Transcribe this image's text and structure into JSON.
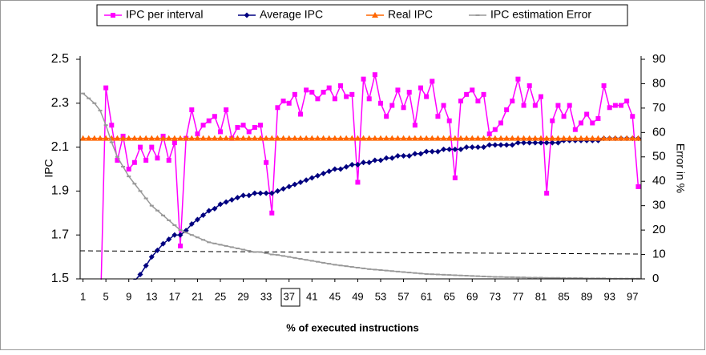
{
  "chart_data": {
    "type": "line",
    "x": [
      1,
      2,
      3,
      4,
      5,
      6,
      7,
      8,
      9,
      10,
      11,
      12,
      13,
      14,
      15,
      16,
      17,
      18,
      19,
      20,
      21,
      22,
      23,
      24,
      25,
      26,
      27,
      28,
      29,
      30,
      31,
      32,
      33,
      34,
      35,
      36,
      37,
      38,
      39,
      40,
      41,
      42,
      43,
      44,
      45,
      46,
      47,
      48,
      49,
      50,
      51,
      52,
      53,
      54,
      55,
      56,
      57,
      58,
      59,
      60,
      61,
      62,
      63,
      64,
      65,
      66,
      67,
      68,
      69,
      70,
      71,
      72,
      73,
      74,
      75,
      76,
      77,
      78,
      79,
      80,
      81,
      82,
      83,
      84,
      85,
      86,
      87,
      88,
      89,
      90,
      91,
      92,
      93,
      94,
      95,
      96,
      97,
      98
    ],
    "xlim": [
      0.5,
      98.5
    ],
    "xticks": [
      1,
      5,
      9,
      13,
      17,
      21,
      25,
      29,
      33,
      37,
      41,
      45,
      49,
      53,
      57,
      61,
      65,
      69,
      73,
      77,
      81,
      85,
      89,
      93,
      97
    ],
    "ylim": [
      1.5,
      2.5
    ],
    "yticks": [
      1.5,
      1.7,
      1.9,
      2.1,
      2.3,
      2.5
    ],
    "y2lim": [
      0,
      90
    ],
    "y2ticks": [
      0,
      10,
      20,
      30,
      40,
      50,
      60,
      70,
      80,
      90
    ],
    "xlabel": "% of executed instructions",
    "ylabel": "IPC",
    "y2label": "Error in %",
    "series": [
      {
        "name": "IPC per interval",
        "color": "#ff00ff",
        "marker": "square",
        "values": [
          null,
          null,
          null,
          1.3,
          2.37,
          2.2,
          2.04,
          2.15,
          2.0,
          2.03,
          2.1,
          2.04,
          2.1,
          2.05,
          2.15,
          2.04,
          2.12,
          1.65,
          2.14,
          2.27,
          2.16,
          2.2,
          2.22,
          2.24,
          2.17,
          2.27,
          2.14,
          2.19,
          2.2,
          2.17,
          2.19,
          2.2,
          2.03,
          1.8,
          2.28,
          2.31,
          2.3,
          2.34,
          2.25,
          2.36,
          2.35,
          2.32,
          2.35,
          2.37,
          2.32,
          2.38,
          2.33,
          2.34,
          1.94,
          2.41,
          2.32,
          2.43,
          2.3,
          2.24,
          2.29,
          2.36,
          2.28,
          2.35,
          2.2,
          2.37,
          2.33,
          2.4,
          2.24,
          2.29,
          2.22,
          1.96,
          2.31,
          2.34,
          2.36,
          2.31,
          2.34,
          2.16,
          2.18,
          2.21,
          2.27,
          2.31,
          2.41,
          2.29,
          2.38,
          2.29,
          2.33,
          1.89,
          2.22,
          2.29,
          2.24,
          2.29,
          2.18,
          2.21,
          2.25,
          2.21,
          2.23,
          2.38,
          2.28,
          2.29,
          2.29,
          2.31,
          2.24,
          1.92
        ]
      },
      {
        "name": "Average IPC",
        "color": "#000080",
        "marker": "diamond",
        "values": [
          null,
          null,
          null,
          null,
          null,
          null,
          null,
          null,
          null,
          1.49,
          1.52,
          1.56,
          1.6,
          1.63,
          1.66,
          1.68,
          1.7,
          1.7,
          1.72,
          1.75,
          1.77,
          1.79,
          1.81,
          1.82,
          1.84,
          1.85,
          1.86,
          1.87,
          1.88,
          1.88,
          1.89,
          1.89,
          1.89,
          1.89,
          1.9,
          1.91,
          1.92,
          1.93,
          1.94,
          1.95,
          1.96,
          1.97,
          1.98,
          1.99,
          2.0,
          2.0,
          2.01,
          2.02,
          2.02,
          2.03,
          2.03,
          2.04,
          2.04,
          2.05,
          2.05,
          2.06,
          2.06,
          2.06,
          2.07,
          2.07,
          2.08,
          2.08,
          2.08,
          2.09,
          2.09,
          2.09,
          2.09,
          2.1,
          2.1,
          2.1,
          2.1,
          2.11,
          2.11,
          2.11,
          2.11,
          2.11,
          2.12,
          2.12,
          2.12,
          2.12,
          2.12,
          2.12,
          2.12,
          2.12,
          2.13,
          2.13,
          2.13,
          2.13,
          2.13,
          2.13,
          2.13,
          2.14,
          2.14,
          2.14,
          2.14,
          2.14,
          2.14,
          2.14
        ]
      },
      {
        "name": "Real IPC",
        "color": "#ff6600",
        "marker": "triangle",
        "values": [
          2.14,
          2.14,
          2.14,
          2.14,
          2.14,
          2.14,
          2.14,
          2.14,
          2.14,
          2.14,
          2.14,
          2.14,
          2.14,
          2.14,
          2.14,
          2.14,
          2.14,
          2.14,
          2.14,
          2.14,
          2.14,
          2.14,
          2.14,
          2.14,
          2.14,
          2.14,
          2.14,
          2.14,
          2.14,
          2.14,
          2.14,
          2.14,
          2.14,
          2.14,
          2.14,
          2.14,
          2.14,
          2.14,
          2.14,
          2.14,
          2.14,
          2.14,
          2.14,
          2.14,
          2.14,
          2.14,
          2.14,
          2.14,
          2.14,
          2.14,
          2.14,
          2.14,
          2.14,
          2.14,
          2.14,
          2.14,
          2.14,
          2.14,
          2.14,
          2.14,
          2.14,
          2.14,
          2.14,
          2.14,
          2.14,
          2.14,
          2.14,
          2.14,
          2.14,
          2.14,
          2.14,
          2.14,
          2.14,
          2.14,
          2.14,
          2.14,
          2.14,
          2.14,
          2.14,
          2.14,
          2.14,
          2.14,
          2.14,
          2.14,
          2.14,
          2.14,
          2.14,
          2.14,
          2.14,
          2.14,
          2.14,
          2.14,
          2.14,
          2.14,
          2.14,
          2.14,
          2.14,
          2.14
        ]
      },
      {
        "name": "IPC estimation Error",
        "color": "#999999",
        "marker": "dash",
        "axis": "y2",
        "values": [
          76,
          74,
          72,
          69,
          63,
          56,
          50,
          46,
          42,
          39,
          36,
          33,
          30,
          28,
          26,
          24,
          22,
          20,
          19,
          18,
          17,
          16,
          15,
          14.5,
          14,
          13.5,
          13,
          12.5,
          12,
          11.5,
          11,
          11,
          10.5,
          10,
          9.8,
          9.4,
          9,
          8.6,
          8.2,
          7.8,
          7.4,
          7,
          6.6,
          6.2,
          5.8,
          5.5,
          5.2,
          4.9,
          4.6,
          4.3,
          4,
          3.8,
          3.6,
          3.4,
          3.2,
          3,
          2.8,
          2.6,
          2.4,
          2.2,
          2,
          1.9,
          1.8,
          1.7,
          1.6,
          1.5,
          1.4,
          1.3,
          1.2,
          1.1,
          1,
          0.9,
          0.8,
          0.8,
          0.7,
          0.7,
          0.6,
          0.6,
          0.5,
          0.5,
          0.5,
          0.4,
          0.4,
          0.4,
          0.3,
          0.3,
          0.3,
          0.3,
          0.2,
          0.2,
          0.2,
          0.2,
          0.1,
          0.1,
          0.1,
          0.1,
          0.1,
          0.1
        ]
      }
    ]
  }
}
